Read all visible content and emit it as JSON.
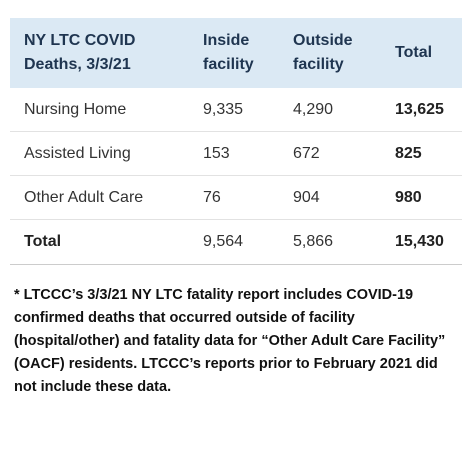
{
  "table": {
    "header": [
      "NY LTC COVID Deaths, 3/3/21",
      "Inside facility",
      "Outside facility",
      "Total"
    ],
    "rows": [
      [
        "Nursing Home",
        "9,335",
        "4,290",
        "13,625"
      ],
      [
        "Assisted Living",
        "153",
        "672",
        "825"
      ],
      [
        "Other Adult Care",
        "76",
        "904",
        "980"
      ],
      [
        "Total",
        "9,564",
        "5,866",
        "15,430"
      ]
    ]
  },
  "footnote": "* LTCCC’s 3/3/21 NY LTC fatality report includes COVID-19 confirmed deaths that occurred outside of facility (hospital/other) and fatality data for “Other Adult Care Facility” (OACF) residents. LTCCC’s reports prior to February 2021 did not include these data."
}
